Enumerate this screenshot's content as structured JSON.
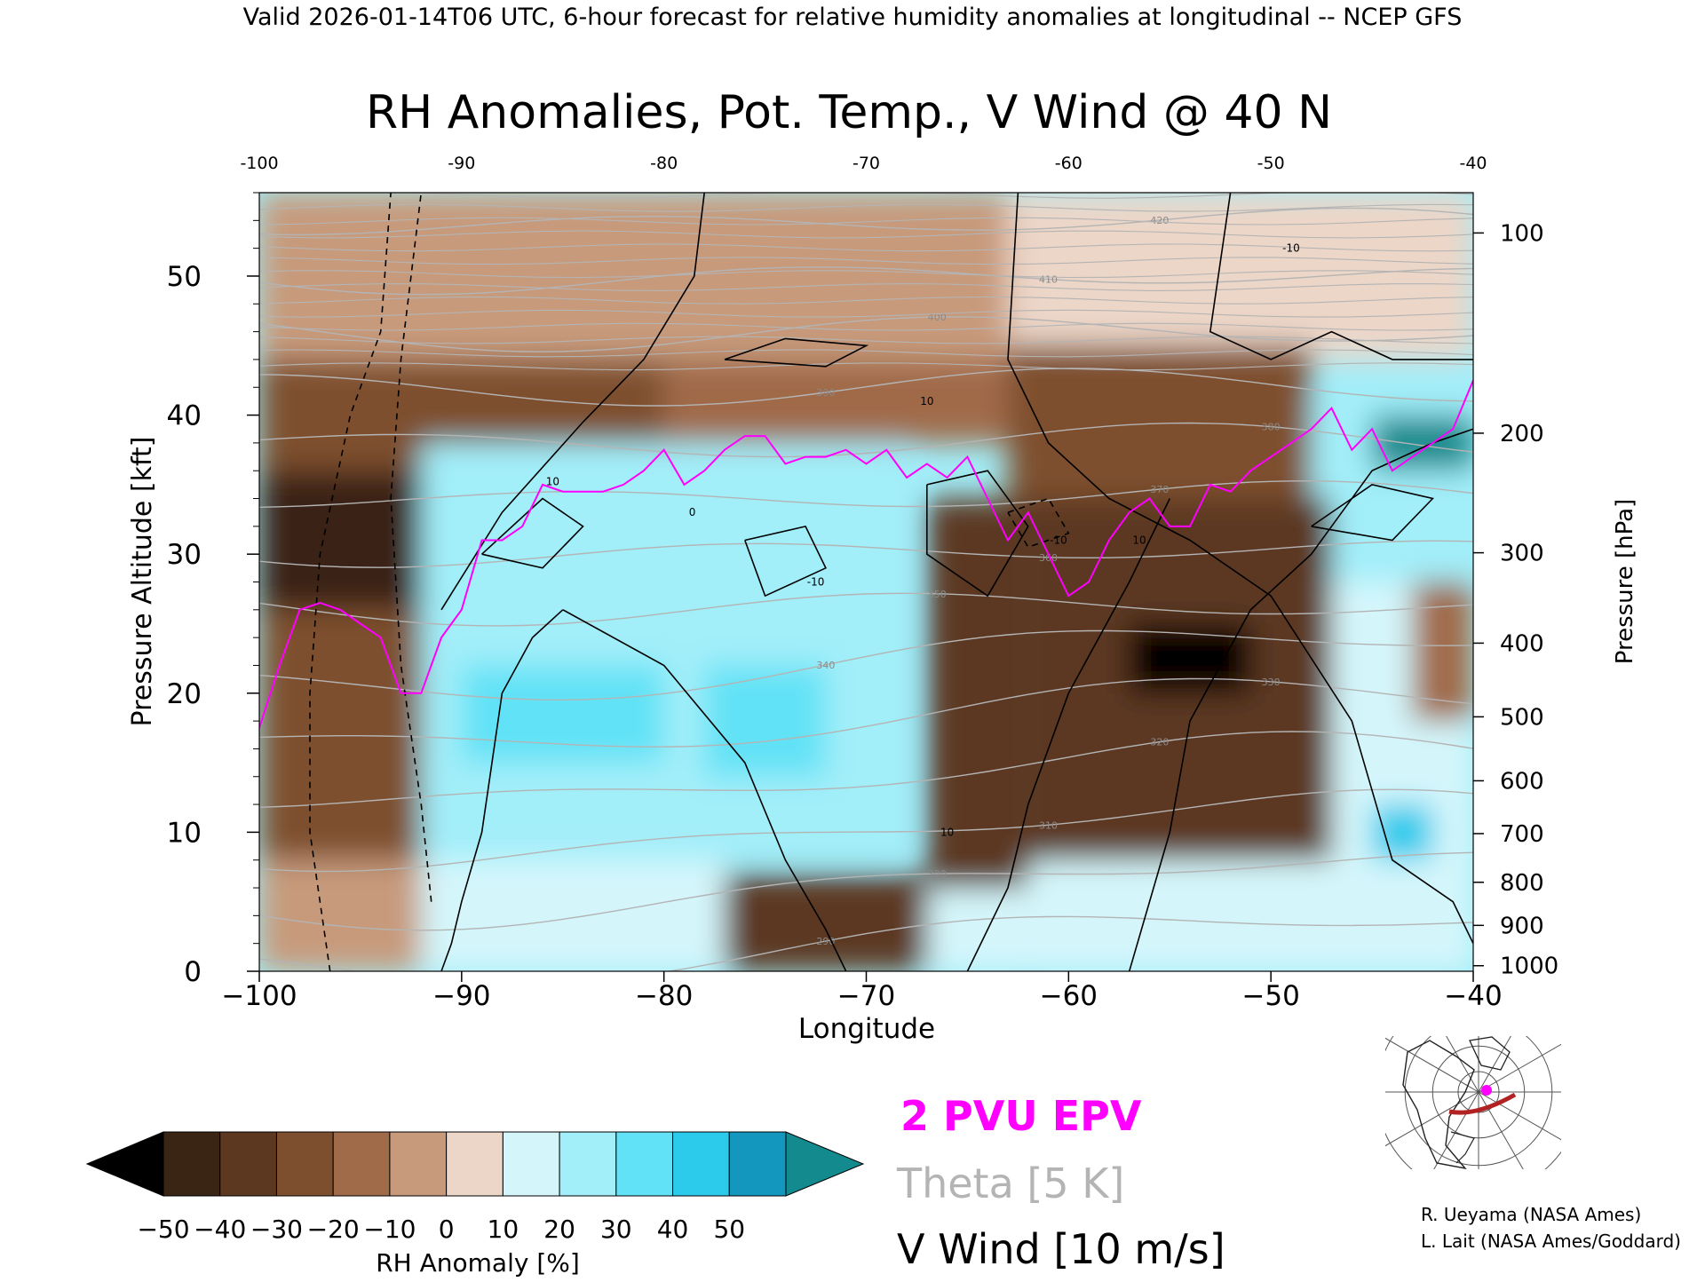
{
  "header": {
    "valid_line": "Valid 2026-01-14T06 UTC, 6-hour forecast for relative humidity anomalies at longitudinal -- NCEP GFS"
  },
  "chart_data": {
    "type": "heatmap",
    "title": "RH Anomalies, Pot. Temp., V Wind @ 40 N",
    "xlabel": "Longitude",
    "ylabel_left": "Pressure Altitude [kft]",
    "ylabel_right": "Pressure [hPa]",
    "xlim": [
      -100,
      -40
    ],
    "ylim": [
      0,
      56
    ],
    "x_ticks": [
      -100,
      -90,
      -80,
      -70,
      -60,
      -50,
      -40
    ],
    "x_tick_labels": [
      "−100",
      "−90",
      "−80",
      "−70",
      "−60",
      "−50",
      "−40"
    ],
    "top_tick_labels": [
      "-100",
      "-90",
      "-80",
      "-70",
      "-60",
      "-50",
      "-40"
    ],
    "y_ticks": [
      0,
      10,
      20,
      30,
      40,
      50
    ],
    "y_tick_labels": [
      "0",
      "10",
      "20",
      "30",
      "40",
      "50"
    ],
    "pressure_ticks": [
      {
        "hPa": 1000,
        "kft": 0.4,
        "label": "1000"
      },
      {
        "hPa": 900,
        "kft": 3.3,
        "label": "900"
      },
      {
        "hPa": 800,
        "kft": 6.4,
        "label": "800"
      },
      {
        "hPa": 700,
        "kft": 9.9,
        "label": "700"
      },
      {
        "hPa": 600,
        "kft": 13.7,
        "label": "600"
      },
      {
        "hPa": 500,
        "kft": 18.3,
        "label": "500"
      },
      {
        "hPa": 400,
        "kft": 23.6,
        "label": "400"
      },
      {
        "hPa": 300,
        "kft": 30.1,
        "label": "300"
      },
      {
        "hPa": 200,
        "kft": 38.7,
        "label": "200"
      },
      {
        "hPa": 100,
        "kft": 53.1,
        "label": "100"
      }
    ],
    "colorbar": {
      "label": "RH Anomaly [%]",
      "ticks": [
        -50,
        -40,
        -30,
        -20,
        -10,
        0,
        10,
        20,
        30,
        40,
        50
      ],
      "tick_labels": [
        "−50",
        "−40",
        "−30",
        "−20",
        "−10",
        "0",
        "10",
        "20",
        "30",
        "40",
        "50"
      ],
      "colors": [
        "#3a2414",
        "#5c3820",
        "#7e4f2e",
        "#a06b48",
        "#c79a7c",
        "#ecd6c8",
        "#d4f6fb",
        "#a2eef9",
        "#62e2f6",
        "#2ccbec",
        "#1497bf"
      ],
      "under_color": "#000000",
      "over_color": "#138b8e"
    },
    "rh_anomaly_regions": [
      {
        "lon": [
          -100,
          -88
        ],
        "kft": [
          34,
          56
        ],
        "value": -5
      },
      {
        "lon": [
          -88,
          -63
        ],
        "kft": [
          44,
          56
        ],
        "value": -4
      },
      {
        "lon": [
          -63,
          -40
        ],
        "kft": [
          44,
          56
        ],
        "value": 4
      },
      {
        "lon": [
          -100,
          -80
        ],
        "kft": [
          36,
          44
        ],
        "value": -28
      },
      {
        "lon": [
          -80,
          -63
        ],
        "kft": [
          38,
          44
        ],
        "value": -18
      },
      {
        "lon": [
          -63,
          -48
        ],
        "kft": [
          34,
          45
        ],
        "value": -25
      },
      {
        "lon": [
          -48,
          -40
        ],
        "kft": [
          28,
          42
        ],
        "value": 24
      },
      {
        "lon": [
          -100,
          -91.5
        ],
        "kft": [
          26,
          36
        ],
        "value": -48
      },
      {
        "lon": [
          -100,
          -92
        ],
        "kft": [
          8,
          26
        ],
        "value": -22
      },
      {
        "lon": [
          -100,
          -92
        ],
        "kft": [
          0,
          8
        ],
        "value": -4
      },
      {
        "lon": [
          -92,
          -68
        ],
        "kft": [
          8,
          38
        ],
        "value": 28
      },
      {
        "lon": [
          -90,
          -80
        ],
        "kft": [
          15,
          22
        ],
        "value": 38
      },
      {
        "lon": [
          -78,
          -72
        ],
        "kft": [
          14,
          22
        ],
        "value": 36
      },
      {
        "lon": [
          -92,
          -77
        ],
        "kft": [
          0,
          8
        ],
        "value": 12
      },
      {
        "lon": [
          -77,
          -67
        ],
        "kft": [
          0,
          7
        ],
        "value": -40
      },
      {
        "lon": [
          -67,
          -62
        ],
        "kft": [
          0,
          34
        ],
        "value": -32
      },
      {
        "lon": [
          -67,
          -62
        ],
        "kft": [
          0,
          6
        ],
        "value": 18
      },
      {
        "lon": [
          -62,
          -47
        ],
        "kft": [
          8,
          34
        ],
        "value": -40
      },
      {
        "lon": [
          -62,
          -47
        ],
        "kft": [
          0,
          8
        ],
        "value": 16
      },
      {
        "lon": [
          -57,
          -51
        ],
        "kft": [
          20,
          25
        ],
        "value": -52
      },
      {
        "lon": [
          -47,
          -40
        ],
        "kft": [
          0,
          28
        ],
        "value": 18
      },
      {
        "lon": [
          -45,
          -42
        ],
        "kft": [
          8,
          12
        ],
        "value": 44
      },
      {
        "lon": [
          -43,
          -40
        ],
        "kft": [
          18,
          28
        ],
        "value": -14
      },
      {
        "lon": [
          -45,
          -40
        ],
        "kft": [
          36,
          40
        ],
        "value": 52
      }
    ],
    "series": [
      {
        "name": "2 PVU EPV",
        "x": [
          -100,
          -99,
          -98,
          -97,
          -96,
          -95,
          -94,
          -93,
          -92,
          -91,
          -90,
          -89,
          -88,
          -87,
          -86,
          -85,
          -84,
          -83,
          -82,
          -81,
          -80,
          -79,
          -78,
          -77,
          -76,
          -75,
          -74,
          -73,
          -72,
          -71,
          -70,
          -69,
          -68,
          -67,
          -66,
          -65,
          -64,
          -63,
          -62,
          -61,
          -60,
          -59,
          -58,
          -57,
          -56,
          -55,
          -54,
          -53,
          -52,
          -51,
          -50,
          -49,
          -48,
          -47,
          -46,
          -45,
          -44,
          -43,
          -42,
          -41,
          -40
        ],
        "y": [
          17.5,
          22,
          26,
          26.5,
          26,
          25,
          24,
          20,
          20,
          24,
          26,
          31,
          31,
          32,
          35,
          34.5,
          34.5,
          34.5,
          35,
          36,
          37.5,
          35,
          36,
          37.5,
          38.5,
          38.5,
          36.5,
          37,
          37,
          37.5,
          36.5,
          37.5,
          35.5,
          36.5,
          35.5,
          37,
          34,
          31,
          33,
          30,
          27,
          28,
          31,
          33,
          34,
          32,
          32,
          35,
          34.5,
          36,
          37,
          38,
          39,
          40.5,
          37.5,
          39,
          36,
          37,
          38,
          39,
          42.5
        ]
      },
      {
        "name": "V Wind 0",
        "x": [
          -91,
          -90.5,
          -90,
          -89,
          -88,
          -86.5,
          -85
        ],
        "y": [
          0,
          2,
          5,
          10,
          20,
          24,
          26
        ]
      }
    ],
    "legend": {
      "epv": "2 PVU EPV",
      "theta": "Theta [5 K]",
      "vwind": "V Wind [10 m/s]",
      "epv_color": "#ff00ff",
      "theta_color": "#b4b4b4",
      "vwind_color": "#000000",
      "placement": "bottom-center"
    },
    "theta_levels": [
      {
        "value": 290,
        "label": "290"
      },
      {
        "value": 300,
        "label": "300"
      },
      {
        "value": 310,
        "label": "310"
      },
      {
        "value": 320,
        "label": "320"
      },
      {
        "value": 330,
        "label": "330"
      },
      {
        "value": 340,
        "label": "340"
      },
      {
        "value": 350,
        "label": "350"
      },
      {
        "value": 360,
        "label": "360"
      },
      {
        "value": 370,
        "label": "370"
      },
      {
        "value": 380,
        "label": "380"
      },
      {
        "value": 390,
        "label": "390"
      },
      {
        "value": 400,
        "label": "400"
      },
      {
        "value": 410,
        "label": "410"
      },
      {
        "value": 420,
        "label": "420"
      }
    ],
    "vwind_labels": [
      "10",
      "0",
      "-10"
    ]
  },
  "inset_map": {
    "marker_color": "#ff00ff",
    "track_color": "#b22222"
  },
  "credits": {
    "line1": "R. Ueyama (NASA Ames)",
    "line2": "L. Lait (NASA Ames/Goddard)"
  }
}
